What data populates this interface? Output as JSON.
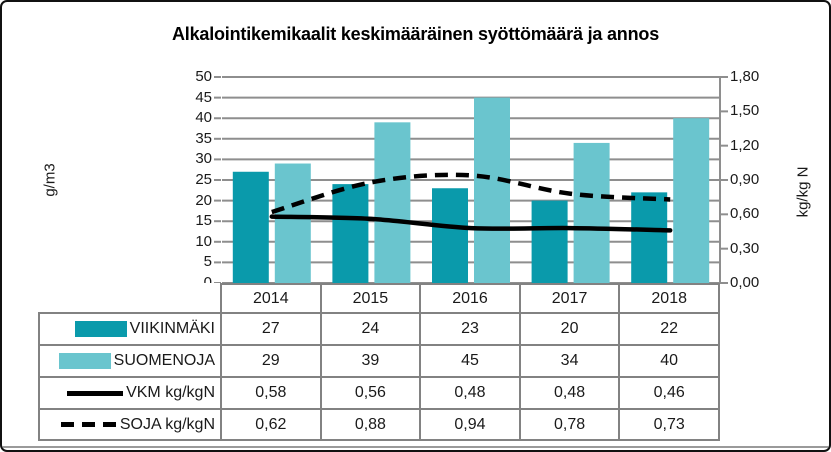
{
  "chart_data": {
    "type": "bar+line combo",
    "title": "Alkalointikemikaalit keskimääräinen syöttömäärä ja annos",
    "categories": [
      "2014",
      "2015",
      "2016",
      "2017",
      "2018"
    ],
    "series": [
      {
        "name": "VIIKINMÄKI",
        "type": "bar",
        "axis": "left",
        "color": "#0A9AAB",
        "values": [
          27,
          24,
          23,
          20,
          22
        ],
        "labels": [
          "27",
          "24",
          "23",
          "20",
          "22"
        ]
      },
      {
        "name": "SUOMENOJA",
        "type": "bar",
        "axis": "left",
        "color": "#6AC5CE",
        "values": [
          29,
          39,
          45,
          34,
          40
        ],
        "labels": [
          "29",
          "39",
          "45",
          "34",
          "40"
        ]
      },
      {
        "name": "VKM kg/kgN",
        "type": "line",
        "style": "solid",
        "axis": "right",
        "color": "#000000",
        "values": [
          0.58,
          0.56,
          0.48,
          0.48,
          0.46
        ],
        "labels": [
          "0,58",
          "0,56",
          "0,48",
          "0,48",
          "0,46"
        ]
      },
      {
        "name": "SOJA kg/kgN",
        "type": "line",
        "style": "dashed",
        "axis": "right",
        "color": "#000000",
        "values": [
          0.62,
          0.88,
          0.94,
          0.78,
          0.73
        ],
        "labels": [
          "0,62",
          "0,88",
          "0,94",
          "0,78",
          "0,73"
        ]
      }
    ],
    "ylabel_left": "g/m3",
    "ylabel_right": "kg/kg N",
    "ylim_left": [
      0,
      50
    ],
    "ylim_right": [
      0,
      1.8
    ],
    "yticks_left": [
      "0",
      "5",
      "10",
      "15",
      "20",
      "25",
      "30",
      "35",
      "40",
      "45",
      "50"
    ],
    "yticks_right": [
      "0,00",
      "0,30",
      "0,60",
      "0,90",
      "1,20",
      "1,50",
      "1,80"
    ],
    "grid": "on",
    "legend_position": "data-table-left-column"
  },
  "colors": {
    "bar_dark": "#0A9AAB",
    "bar_light": "#6AC5CE",
    "gridline": "#8E8E8E",
    "axis": "#8E8E8E",
    "table_border": "#828282",
    "line_series": "#000000"
  }
}
